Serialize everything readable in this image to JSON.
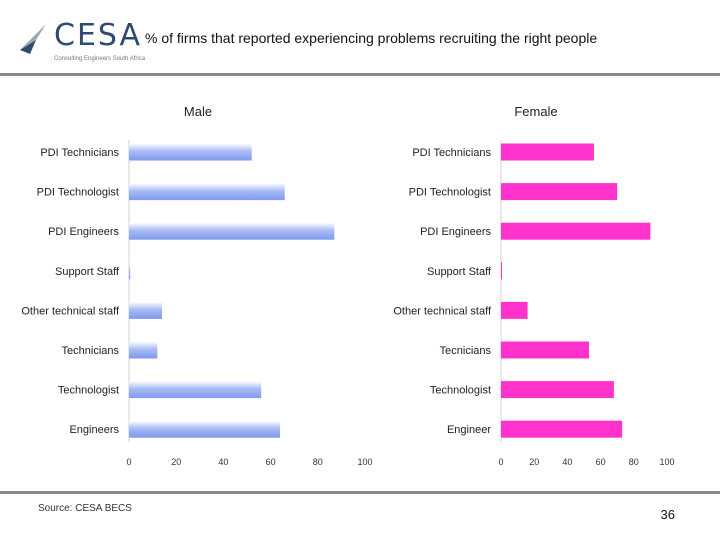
{
  "header": {
    "logo_text": "CESA",
    "logo_subtitle": "Consulting Engineers South Africa",
    "title": "% of firms that reported experiencing problems recruiting the right people"
  },
  "footer": {
    "source": "Source: CESA BECS",
    "page_number": "36"
  },
  "colors": {
    "male_bar": "#a9bcf5",
    "female_bar": "#ff33cc"
  },
  "chart_data": [
    {
      "type": "bar",
      "orientation": "horizontal",
      "title": "Male",
      "categories": [
        "PDI Technicians",
        "PDI Technologist",
        "PDI Engineers",
        "Support Staff",
        "Other technical staff",
        "Technicians",
        "Technologist",
        "Engineers"
      ],
      "values": [
        52,
        66,
        87,
        0.5,
        14,
        12,
        56,
        64
      ],
      "xlim": [
        0,
        100
      ],
      "xticks": [
        0,
        20,
        40,
        60,
        80,
        100
      ],
      "xlabel": "",
      "ylabel": ""
    },
    {
      "type": "bar",
      "orientation": "horizontal",
      "title": "Female",
      "categories": [
        "PDI Technicians",
        "PDI Technologist",
        "PDI Engineers",
        "Support Staff",
        "Other technical staff",
        "Tecnicians",
        "Technologist",
        "Engineer"
      ],
      "values": [
        56,
        70,
        90,
        0.5,
        16,
        53,
        68,
        73
      ],
      "xlim": [
        0,
        100
      ],
      "xticks": [
        0,
        20,
        40,
        60,
        80,
        100
      ],
      "xlabel": "",
      "ylabel": ""
    }
  ]
}
